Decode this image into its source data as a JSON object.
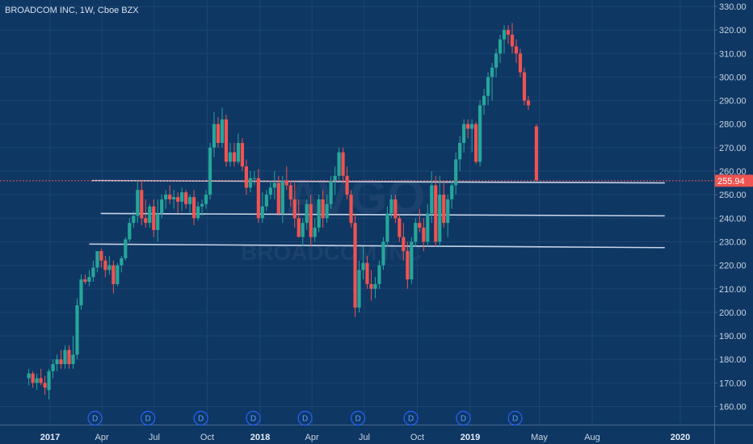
{
  "header": {
    "title": "BROADCOM INC, 1W, Cboe BZX"
  },
  "watermark": {
    "symbol": "AVGO",
    "name": "BROADCOM INC"
  },
  "colors": {
    "background": "#0e3764",
    "up": "#26a69a",
    "down": "#ef5350",
    "line": "#c9d4e6",
    "price_tag": "#ef5350",
    "dividend": "#2962ff"
  },
  "last_price_label": "255.94",
  "chart_data": {
    "type": "candlestick",
    "title": "BROADCOM INC, 1W, Cboe BZX",
    "ylim": [
      155,
      332
    ],
    "y_ticks": [
      "160.00",
      "170.00",
      "180.00",
      "190.00",
      "200.00",
      "210.00",
      "220.00",
      "230.00",
      "240.00",
      "250.00",
      "260.00",
      "270.00",
      "280.00",
      "290.00",
      "300.00",
      "310.00",
      "320.00",
      "330.00"
    ],
    "x_labels": [
      {
        "label": "2017",
        "date": "2017-01-01",
        "year": true
      },
      {
        "label": "Apr",
        "date": "2017-04-01"
      },
      {
        "label": "Jul",
        "date": "2017-07-01"
      },
      {
        "label": "Oct",
        "date": "2017-10-01"
      },
      {
        "label": "2018",
        "date": "2018-01-01",
        "year": true
      },
      {
        "label": "Apr",
        "date": "2018-04-01"
      },
      {
        "label": "Jul",
        "date": "2018-07-01"
      },
      {
        "label": "Oct",
        "date": "2018-10-01"
      },
      {
        "label": "2019",
        "date": "2019-01-01",
        "year": true
      },
      {
        "label": "May",
        "date": "2019-05-01"
      },
      {
        "label": "Aug",
        "date": "2019-08-01"
      },
      {
        "label": "2020",
        "date": "2020-01-01",
        "year": true
      }
    ],
    "last_price": 255.94,
    "dividend_marker": "D",
    "dividends": [
      "2017-03-20",
      "2017-06-20",
      "2017-09-20",
      "2017-12-20",
      "2018-03-20",
      "2018-06-20",
      "2018-09-20",
      "2018-12-20",
      "2019-03-20"
    ],
    "lines": [
      {
        "start": "2017-03-15",
        "y1": 256,
        "end": "2019-12-05",
        "y2": 255
      },
      {
        "start": "2017-03-30",
        "y1": 242,
        "end": "2019-12-05",
        "y2": 241
      },
      {
        "start": "2017-03-10",
        "y1": 229,
        "end": "2019-12-05",
        "y2": 227.5
      }
    ],
    "candles": {
      "columns": [
        "date",
        "open",
        "high",
        "low",
        "close"
      ],
      "rows": [
        [
          "2016-11-25",
          172,
          176,
          169,
          174
        ],
        [
          "2016-12-02",
          174,
          175,
          168,
          170
        ],
        [
          "2016-12-09",
          170,
          174,
          167,
          172
        ],
        [
          "2016-12-16",
          172,
          176,
          169,
          170
        ],
        [
          "2016-12-23",
          170,
          173,
          165,
          168
        ],
        [
          "2016-12-30",
          167,
          176,
          163,
          175
        ],
        [
          "2017-01-06",
          175,
          180,
          172,
          178
        ],
        [
          "2017-01-13",
          178,
          182,
          175,
          180
        ],
        [
          "2017-01-20",
          180,
          184,
          176,
          178
        ],
        [
          "2017-01-27",
          178,
          186,
          176,
          184
        ],
        [
          "2017-02-03",
          184,
          186,
          176,
          178
        ],
        [
          "2017-02-10",
          178,
          190,
          176,
          182
        ],
        [
          "2017-02-17",
          182,
          206,
          180,
          203
        ],
        [
          "2017-02-24",
          203,
          216,
          201,
          214
        ],
        [
          "2017-03-03",
          214,
          216,
          212,
          213
        ],
        [
          "2017-03-10",
          213,
          218,
          211,
          215
        ],
        [
          "2017-03-17",
          215,
          222,
          213,
          219
        ],
        [
          "2017-03-24",
          219,
          226,
          217,
          226
        ],
        [
          "2017-03-31",
          226,
          227,
          219,
          222
        ],
        [
          "2017-04-07",
          222,
          224,
          215,
          218
        ],
        [
          "2017-04-14",
          218,
          224,
          216,
          220
        ],
        [
          "2017-04-21",
          220,
          222,
          208,
          212
        ],
        [
          "2017-04-28",
          212,
          221,
          211,
          220
        ],
        [
          "2017-05-05",
          220,
          224,
          217,
          223
        ],
        [
          "2017-05-12",
          223,
          232,
          222,
          231
        ],
        [
          "2017-05-19",
          231,
          240,
          230,
          238
        ],
        [
          "2017-05-26",
          238,
          243,
          236,
          241
        ],
        [
          "2017-06-02",
          241,
          256,
          238,
          252
        ],
        [
          "2017-06-09",
          252,
          256,
          237,
          240
        ],
        [
          "2017-06-16",
          240,
          248,
          236,
          238
        ],
        [
          "2017-06-23",
          238,
          246,
          236,
          245
        ],
        [
          "2017-06-30",
          245,
          248,
          232,
          235
        ],
        [
          "2017-07-07",
          235,
          248,
          230,
          242
        ],
        [
          "2017-07-14",
          242,
          250,
          240,
          248
        ],
        [
          "2017-07-21",
          248,
          252,
          244,
          250
        ],
        [
          "2017-07-28",
          250,
          254,
          246,
          248
        ],
        [
          "2017-08-04",
          248,
          252,
          244,
          249
        ],
        [
          "2017-08-11",
          249,
          251,
          242,
          247
        ],
        [
          "2017-08-18",
          247,
          253,
          243,
          251
        ],
        [
          "2017-08-25",
          251,
          252,
          244,
          246
        ],
        [
          "2017-09-01",
          246,
          250,
          242,
          249
        ],
        [
          "2017-09-08",
          249,
          252,
          237,
          240
        ],
        [
          "2017-09-15",
          240,
          247,
          239,
          245
        ],
        [
          "2017-09-22",
          245,
          248,
          241,
          246
        ],
        [
          "2017-09-29",
          246,
          252,
          244,
          250
        ],
        [
          "2017-10-06",
          250,
          272,
          248,
          270
        ],
        [
          "2017-10-13",
          270,
          285,
          266,
          280
        ],
        [
          "2017-10-20",
          280,
          283,
          270,
          272
        ],
        [
          "2017-10-27",
          272,
          287,
          270,
          282
        ],
        [
          "2017-11-03",
          282,
          284,
          262,
          264
        ],
        [
          "2017-11-10",
          264,
          272,
          262,
          268
        ],
        [
          "2017-11-17",
          268,
          272,
          262,
          264
        ],
        [
          "2017-11-24",
          264,
          276,
          263,
          272
        ],
        [
          "2017-12-01",
          272,
          274,
          260,
          262
        ],
        [
          "2017-12-08",
          262,
          265,
          250,
          253
        ],
        [
          "2017-12-15",
          253,
          260,
          251,
          257
        ],
        [
          "2017-12-22",
          257,
          260,
          254,
          257
        ],
        [
          "2017-12-29",
          257,
          261,
          238,
          240
        ],
        [
          "2018-01-05",
          240,
          251,
          238,
          245
        ],
        [
          "2018-01-12",
          245,
          252,
          243,
          250
        ],
        [
          "2018-01-19",
          250,
          256,
          248,
          253
        ],
        [
          "2018-01-26",
          253,
          260,
          248,
          255
        ],
        [
          "2018-02-02",
          255,
          258,
          241,
          242
        ],
        [
          "2018-02-09",
          242,
          258,
          238,
          256
        ],
        [
          "2018-02-16",
          256,
          262,
          252,
          254
        ],
        [
          "2018-02-23",
          254,
          256,
          245,
          248
        ],
        [
          "2018-03-02",
          248,
          255,
          236,
          240
        ],
        [
          "2018-03-09",
          240,
          248,
          232,
          232
        ],
        [
          "2018-03-16",
          232,
          240,
          228,
          238
        ],
        [
          "2018-03-23",
          238,
          248,
          235,
          246
        ],
        [
          "2018-03-30",
          246,
          250,
          228,
          232
        ],
        [
          "2018-04-06",
          232,
          240,
          230,
          236
        ],
        [
          "2018-04-13",
          236,
          250,
          234,
          248
        ],
        [
          "2018-04-20",
          248,
          252,
          236,
          240
        ],
        [
          "2018-04-27",
          240,
          250,
          238,
          246
        ],
        [
          "2018-05-04",
          246,
          258,
          244,
          256
        ],
        [
          "2018-05-11",
          256,
          262,
          250,
          258
        ],
        [
          "2018-05-18",
          258,
          270,
          256,
          268
        ],
        [
          "2018-05-25",
          268,
          270,
          255,
          258
        ],
        [
          "2018-06-01",
          258,
          262,
          248,
          250
        ],
        [
          "2018-06-08",
          250,
          252,
          236,
          238
        ],
        [
          "2018-06-15",
          238,
          242,
          198,
          202
        ],
        [
          "2018-06-22",
          202,
          222,
          200,
          218
        ],
        [
          "2018-06-29",
          218,
          228,
          214,
          221
        ],
        [
          "2018-07-06",
          221,
          224,
          210,
          212
        ],
        [
          "2018-07-13",
          212,
          218,
          205,
          210
        ],
        [
          "2018-07-20",
          210,
          215,
          206,
          212
        ],
        [
          "2018-07-27",
          212,
          222,
          210,
          220
        ],
        [
          "2018-08-03",
          220,
          232,
          218,
          230
        ],
        [
          "2018-08-10",
          230,
          245,
          228,
          242
        ],
        [
          "2018-08-17",
          242,
          250,
          240,
          248
        ],
        [
          "2018-08-24",
          248,
          250,
          238,
          240
        ],
        [
          "2018-08-31",
          240,
          242,
          230,
          232
        ],
        [
          "2018-09-07",
          232,
          238,
          222,
          226
        ],
        [
          "2018-09-14",
          226,
          230,
          210,
          214
        ],
        [
          "2018-09-21",
          214,
          232,
          212,
          230
        ],
        [
          "2018-09-28",
          230,
          240,
          228,
          238
        ],
        [
          "2018-10-05",
          238,
          244,
          234,
          236
        ],
        [
          "2018-10-12",
          236,
          240,
          226,
          230
        ],
        [
          "2018-10-19",
          230,
          246,
          228,
          242
        ],
        [
          "2018-10-26",
          242,
          260,
          238,
          254
        ],
        [
          "2018-11-02",
          254,
          258,
          228,
          230
        ],
        [
          "2018-11-09",
          230,
          258,
          228,
          250
        ],
        [
          "2018-11-16",
          250,
          256,
          236,
          238
        ],
        [
          "2018-11-23",
          238,
          250,
          232,
          248
        ],
        [
          "2018-11-30",
          248,
          256,
          244,
          254
        ],
        [
          "2018-12-07",
          254,
          268,
          250,
          265
        ],
        [
          "2018-12-14",
          265,
          275,
          260,
          272
        ],
        [
          "2018-12-21",
          272,
          282,
          268,
          280
        ],
        [
          "2018-12-28",
          280,
          282,
          274,
          278
        ],
        [
          "2019-01-04",
          278,
          282,
          268,
          280
        ],
        [
          "2019-01-11",
          280,
          281,
          263,
          264
        ],
        [
          "2019-01-18",
          264,
          290,
          262,
          288
        ],
        [
          "2019-01-25",
          288,
          295,
          284,
          292
        ],
        [
          "2019-02-01",
          292,
          302,
          288,
          300
        ],
        [
          "2019-02-08",
          300,
          306,
          290,
          304
        ],
        [
          "2019-02-15",
          304,
          312,
          300,
          310
        ],
        [
          "2019-02-22",
          310,
          318,
          306,
          316
        ],
        [
          "2019-03-01",
          316,
          322,
          310,
          320
        ],
        [
          "2019-03-08",
          320,
          322,
          314,
          318
        ],
        [
          "2019-03-15",
          318,
          323,
          310,
          313
        ],
        [
          "2019-03-22",
          313,
          316,
          306,
          310
        ],
        [
          "2019-03-29",
          310,
          312,
          300,
          302
        ],
        [
          "2019-04-05",
          302,
          304,
          288,
          290
        ],
        [
          "2019-04-12",
          290,
          292,
          286,
          288
        ],
        [
          "2019-04-26",
          279,
          280,
          256,
          256
        ]
      ]
    }
  }
}
